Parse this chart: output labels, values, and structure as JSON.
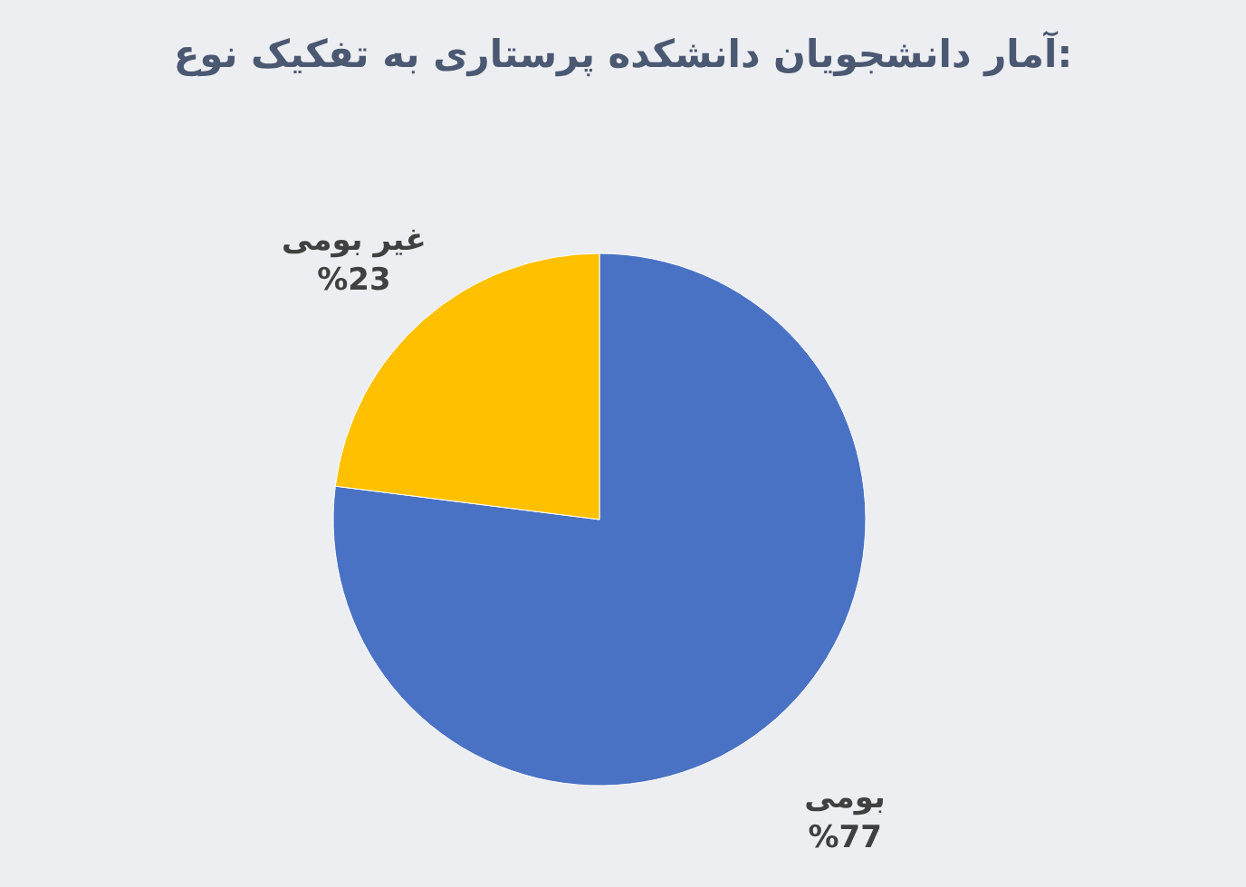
{
  "chart_data": {
    "type": "pie",
    "title": "آمار دانشجویان دانشکده پرستاری به تفکیک نوع:",
    "categories": [
      "بومی",
      "غیر بومی"
    ],
    "values": [
      77,
      23
    ],
    "colors": [
      "#4a72c4",
      "#ffc000"
    ],
    "value_labels": [
      "%77",
      "%23"
    ],
    "legend": false
  }
}
